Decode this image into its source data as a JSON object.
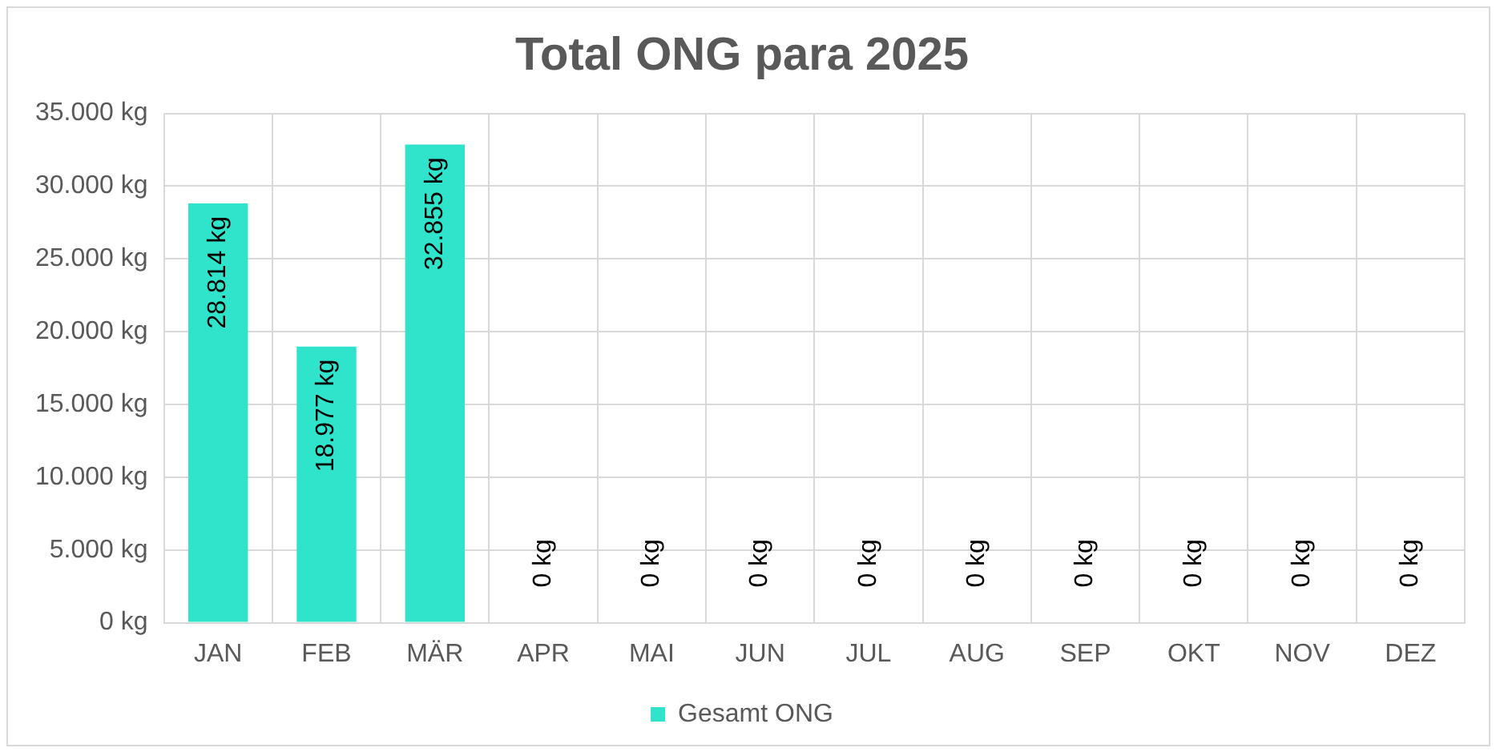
{
  "chart_data": {
    "type": "bar",
    "title": "Total ONG para 2025",
    "categories": [
      "JAN",
      "FEB",
      "MÄR",
      "APR",
      "MAI",
      "JUN",
      "JUL",
      "AUG",
      "SEP",
      "OKT",
      "NOV",
      "DEZ"
    ],
    "series": [
      {
        "name": "Gesamt ONG",
        "color": "#30e3cb",
        "values": [
          28814,
          18977,
          32855,
          0,
          0,
          0,
          0,
          0,
          0,
          0,
          0,
          0
        ],
        "value_labels": [
          "28.814 kg",
          "18.977 kg",
          "32.855 kg",
          "0 kg",
          "0 kg",
          "0 kg",
          "0 kg",
          "0 kg",
          "0 kg",
          "0 kg",
          "0 kg",
          "0 kg"
        ]
      }
    ],
    "ylim": [
      0,
      35000
    ],
    "yticks": [
      {
        "value": 0,
        "label": "0 kg"
      },
      {
        "value": 5000,
        "label": "5.000 kg"
      },
      {
        "value": 10000,
        "label": "10.000 kg"
      },
      {
        "value": 15000,
        "label": "15.000 kg"
      },
      {
        "value": 20000,
        "label": "20.000 kg"
      },
      {
        "value": 25000,
        "label": "25.000 kg"
      },
      {
        "value": 30000,
        "label": "30.000 kg"
      },
      {
        "value": 35000,
        "label": "35.000 kg"
      }
    ],
    "grid": true,
    "legend": "bottom"
  }
}
